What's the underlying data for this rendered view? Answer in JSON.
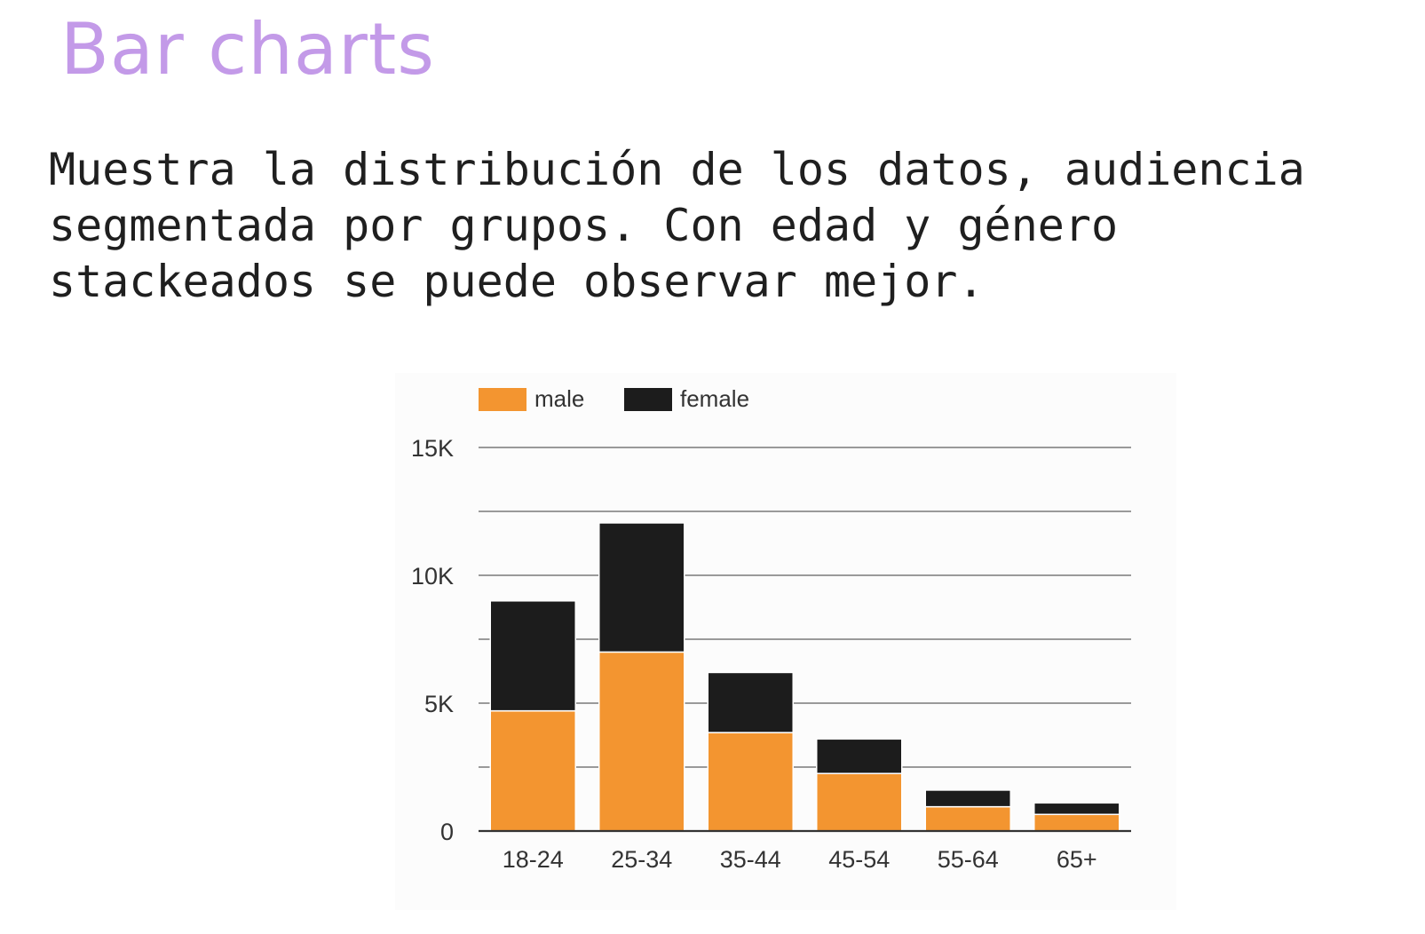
{
  "slide": {
    "title": "Bar charts",
    "body_lines": [
      "Muestra la distribución de los datos, audiencia",
      "segmentada por grupos. Con edad y género",
      "stackeados se puede observar mejor."
    ]
  },
  "chart_data": {
    "type": "bar",
    "stacked": true,
    "categories": [
      "18-24",
      "25-34",
      "35-44",
      "45-54",
      "55-64",
      "65+"
    ],
    "series": [
      {
        "name": "male",
        "color": "#f39530",
        "values": [
          4700,
          7000,
          3850,
          2250,
          950,
          650
        ]
      },
      {
        "name": "female",
        "color": "#1c1c1c",
        "values": [
          4300,
          5050,
          2350,
          1350,
          650,
          450
        ]
      }
    ],
    "ylim": [
      0,
      15000
    ],
    "yticks": [
      0,
      5000,
      10000,
      15000
    ],
    "ytick_labels": [
      "0",
      "5K",
      "10K",
      "15K"
    ],
    "minor_gridlines": [
      2500,
      7500,
      12500
    ],
    "grid": true,
    "legend_position": "top-left",
    "title": "",
    "xlabel": "",
    "ylabel": ""
  }
}
